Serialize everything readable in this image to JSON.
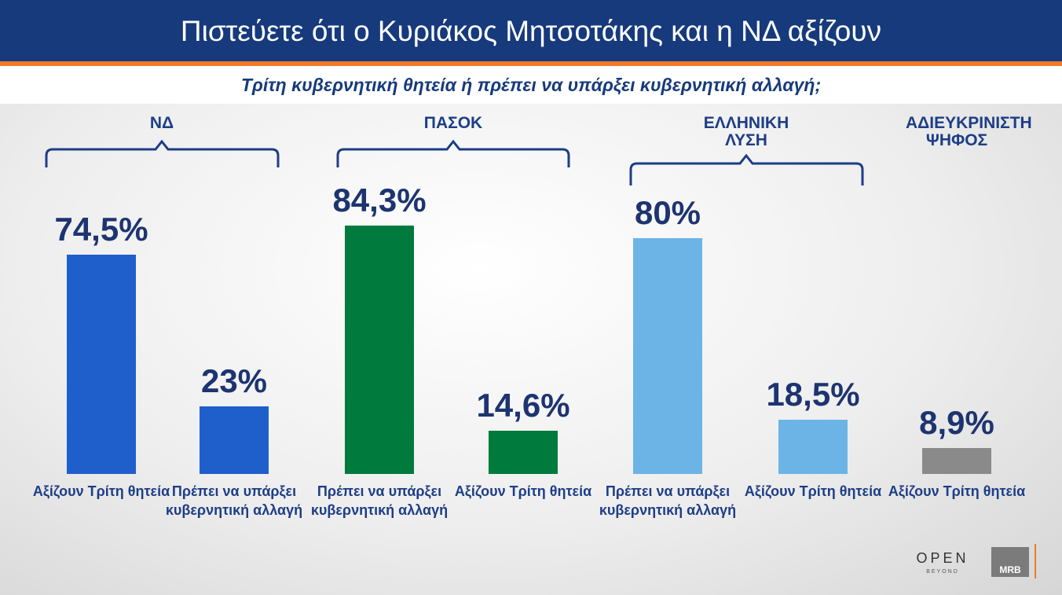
{
  "chart_data": {
    "type": "bar",
    "title": "Πιστεύετε ότι ο Κυριάκος Μητσοτάκης και η ΝΔ αξίζουν",
    "subtitle": "Τρίτη κυβερνητική θητεία ή πρέπει να υπάρξει κυβερνητική αλλαγή;",
    "groups": [
      {
        "name": "ΝΔ",
        "bars": [
          {
            "label": "Αξίζουν Τρίτη θητεία",
            "value": 74.5,
            "value_label": "74,5%",
            "color": "#1f5fcc"
          },
          {
            "label": "Πρέπει να υπάρξει κυβερνητική αλλαγή",
            "value": 23,
            "value_label": "23%",
            "color": "#1f5fcc"
          }
        ]
      },
      {
        "name": "ΠΑΣΟΚ",
        "bars": [
          {
            "label": "Πρέπει να υπάρξει κυβερνητική αλλαγή",
            "value": 84.3,
            "value_label": "84,3%",
            "color": "#007a3d"
          },
          {
            "label": "Αξίζουν Τρίτη θητεία",
            "value": 14.6,
            "value_label": "14,6%",
            "color": "#007a3d"
          }
        ]
      },
      {
        "name": "ΕΛΛΗΝΙΚΗ ΛΥΣΗ",
        "bars": [
          {
            "label": "Πρέπει να υπάρξει κυβερνητική αλλαγή",
            "value": 80,
            "value_label": "80%",
            "color": "#6cb4e6"
          },
          {
            "label": "Αξίζουν Τρίτη θητεία",
            "value": 18.5,
            "value_label": "18,5%",
            "color": "#6cb4e6"
          }
        ]
      },
      {
        "name": "ΑΔΙΕΥΚΡΙΝΙΣΤΗ ΨΗΦΟΣ",
        "bars": [
          {
            "label": "Αξίζουν Τρίτη θητεία",
            "value": 8.9,
            "value_label": "8,9%",
            "color": "#8a8a8a"
          }
        ]
      }
    ]
  },
  "logos": {
    "channel": "OPEN",
    "channel_tagline": "BEYOND",
    "pollster": "MRB"
  }
}
